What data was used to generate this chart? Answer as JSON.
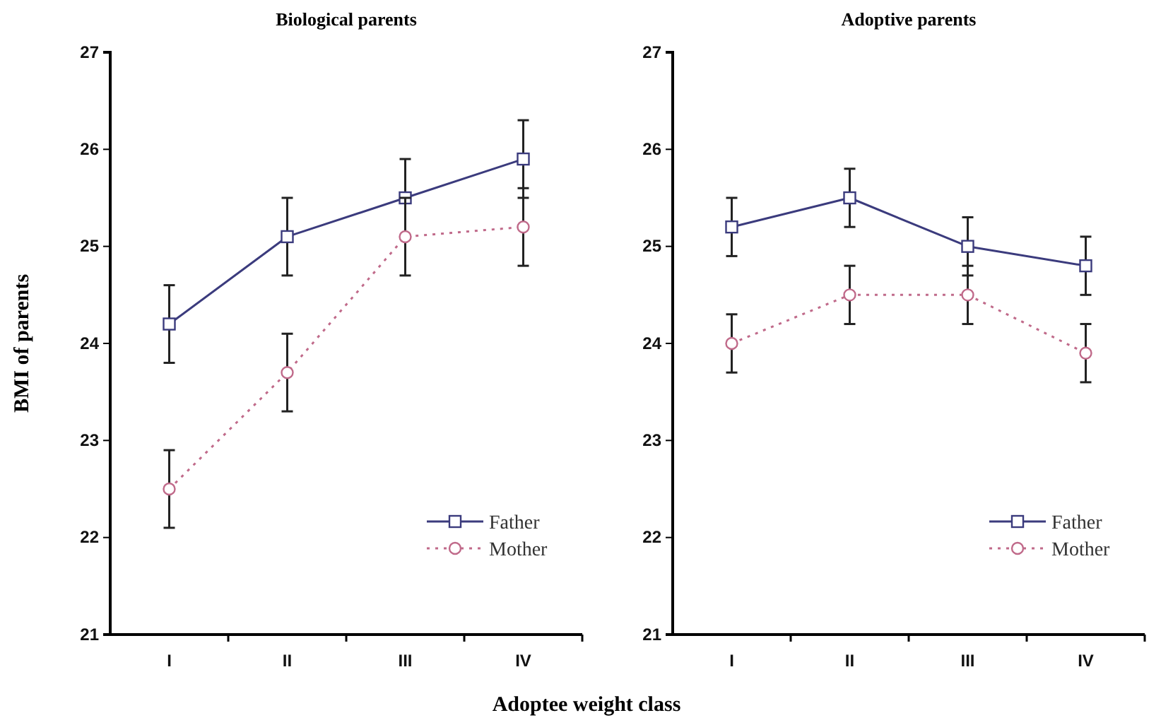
{
  "chart_data": [
    {
      "type": "line",
      "title": "Biological parents",
      "ylabel": "BMI of parents",
      "xlabel": "Adoptee weight class",
      "categories": [
        "I",
        "II",
        "III",
        "IV"
      ],
      "ylim": [
        21,
        27
      ],
      "yticks": [
        21,
        22,
        23,
        24,
        25,
        26,
        27
      ],
      "legend": "bottom right",
      "grid": false,
      "series": [
        {
          "name": "Father",
          "color": "#3b3b7d",
          "marker": "square",
          "line_style": "solid",
          "values": [
            24.2,
            25.1,
            25.5,
            25.9
          ],
          "errors": [
            0.4,
            0.4,
            0.4,
            0.4
          ]
        },
        {
          "name": "Mother",
          "color": "#c06a8a",
          "marker": "circle",
          "line_style": "dotted",
          "values": [
            22.5,
            23.7,
            25.1,
            25.2
          ],
          "errors": [
            0.4,
            0.4,
            0.4,
            0.4
          ]
        }
      ]
    },
    {
      "type": "line",
      "title": "Adoptive parents",
      "categories": [
        "I",
        "II",
        "III",
        "IV"
      ],
      "ylim": [
        21,
        27
      ],
      "yticks": [
        21,
        22,
        23,
        24,
        25,
        26,
        27
      ],
      "legend": "bottom right",
      "grid": false,
      "series": [
        {
          "name": "Father",
          "color": "#3b3b7d",
          "marker": "square",
          "line_style": "solid",
          "values": [
            25.2,
            25.5,
            25.0,
            24.8
          ],
          "errors": [
            0.3,
            0.3,
            0.3,
            0.3
          ]
        },
        {
          "name": "Mother",
          "color": "#c06a8a",
          "marker": "circle",
          "line_style": "dotted",
          "values": [
            24.0,
            24.5,
            24.5,
            23.9
          ],
          "errors": [
            0.3,
            0.3,
            0.3,
            0.3
          ]
        }
      ]
    }
  ]
}
